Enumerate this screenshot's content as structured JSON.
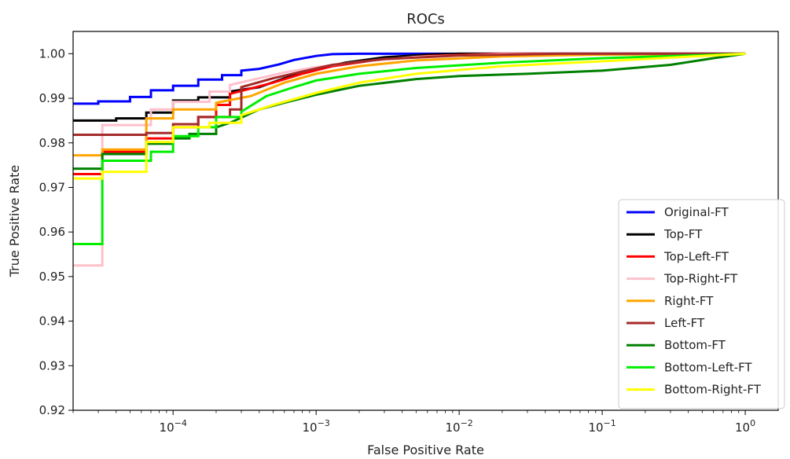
{
  "chart_data": {
    "type": "line",
    "title": "ROCs",
    "xlabel": "False Positive Rate",
    "ylabel": "True Positive Rate",
    "xscale": "log",
    "xlim": [
      2e-05,
      1.7
    ],
    "ylim": [
      0.92,
      1.005
    ],
    "xticks": [
      {
        "value": 0.0001,
        "base": "10",
        "exp": "−4"
      },
      {
        "value": 0.001,
        "base": "10",
        "exp": "−3"
      },
      {
        "value": 0.01,
        "base": "10",
        "exp": "−2"
      },
      {
        "value": 0.1,
        "base": "10",
        "exp": "−1"
      },
      {
        "value": 1,
        "base": "10",
        "exp": "0"
      }
    ],
    "yticks": [
      {
        "value": 0.92,
        "label": "0.92"
      },
      {
        "value": 0.93,
        "label": "0.93"
      },
      {
        "value": 0.94,
        "label": "0.94"
      },
      {
        "value": 0.95,
        "label": "0.95"
      },
      {
        "value": 0.96,
        "label": "0.96"
      },
      {
        "value": 0.97,
        "label": "0.97"
      },
      {
        "value": 0.98,
        "label": "0.98"
      },
      {
        "value": 0.99,
        "label": "0.99"
      },
      {
        "value": 1.0,
        "label": "1.00"
      }
    ],
    "grid": false,
    "legend_position": "lower-right",
    "series": [
      {
        "name": "Original-FT",
        "color": "#0000ff",
        "points": [
          [
            2e-05,
            0.9888
          ],
          [
            3e-05,
            0.9888
          ],
          [
            3e-05,
            0.9893
          ],
          [
            5e-05,
            0.9893
          ],
          [
            5e-05,
            0.9903
          ],
          [
            7e-05,
            0.9903
          ],
          [
            7e-05,
            0.9918
          ],
          [
            0.0001,
            0.9918
          ],
          [
            0.0001,
            0.9928
          ],
          [
            0.00015,
            0.9928
          ],
          [
            0.00015,
            0.9942
          ],
          [
            0.00022,
            0.9942
          ],
          [
            0.00022,
            0.9952
          ],
          [
            0.0003,
            0.9952
          ],
          [
            0.0003,
            0.9962
          ],
          [
            0.0004,
            0.9966
          ],
          [
            0.00055,
            0.9976
          ],
          [
            0.0007,
            0.9986
          ],
          [
            0.001,
            0.9995
          ],
          [
            0.0013,
            0.9999
          ],
          [
            0.002,
            1.0
          ],
          [
            1.0,
            1.0
          ]
        ]
      },
      {
        "name": "Top-FT",
        "color": "#000000",
        "points": [
          [
            2e-05,
            0.985
          ],
          [
            4e-05,
            0.985
          ],
          [
            4e-05,
            0.9855
          ],
          [
            6.5e-05,
            0.9855
          ],
          [
            6.5e-05,
            0.9868
          ],
          [
            0.0001,
            0.9868
          ],
          [
            0.0001,
            0.9895
          ],
          [
            0.00015,
            0.9895
          ],
          [
            0.00015,
            0.9902
          ],
          [
            0.00025,
            0.9902
          ],
          [
            0.00025,
            0.9915
          ],
          [
            0.0004,
            0.9925
          ],
          [
            0.0006,
            0.9945
          ],
          [
            0.001,
            0.9965
          ],
          [
            0.0016,
            0.998
          ],
          [
            0.003,
            0.9992
          ],
          [
            0.006,
            0.9998
          ],
          [
            0.01,
            1.0
          ],
          [
            1.0,
            1.0
          ]
        ]
      },
      {
        "name": "Top-Left-FT",
        "color": "#ff0000",
        "points": [
          [
            2e-05,
            0.973
          ],
          [
            3.2e-05,
            0.973
          ],
          [
            3.2e-05,
            0.978
          ],
          [
            6.5e-05,
            0.978
          ],
          [
            6.5e-05,
            0.981
          ],
          [
            0.0001,
            0.981
          ],
          [
            0.0001,
            0.9835
          ],
          [
            0.00015,
            0.9835
          ],
          [
            0.00015,
            0.9858
          ],
          [
            0.0002,
            0.9858
          ],
          [
            0.0002,
            0.9885
          ],
          [
            0.00025,
            0.9885
          ],
          [
            0.00025,
            0.991
          ],
          [
            0.00035,
            0.9922
          ],
          [
            0.0005,
            0.9935
          ],
          [
            0.0008,
            0.9955
          ],
          [
            0.0013,
            0.9972
          ],
          [
            0.0025,
            0.9985
          ],
          [
            0.006,
            0.9995
          ],
          [
            0.02,
            1.0
          ],
          [
            1.0,
            1.0
          ]
        ]
      },
      {
        "name": "Top-Right-FT",
        "color": "#ffc0cb",
        "points": [
          [
            2e-05,
            0.9525
          ],
          [
            3.2e-05,
            0.9525
          ],
          [
            3.2e-05,
            0.984
          ],
          [
            7e-05,
            0.984
          ],
          [
            7e-05,
            0.9875
          ],
          [
            0.0001,
            0.9875
          ],
          [
            0.0001,
            0.9892
          ],
          [
            0.00018,
            0.9892
          ],
          [
            0.00018,
            0.9915
          ],
          [
            0.00025,
            0.9915
          ],
          [
            0.00025,
            0.993
          ],
          [
            0.0004,
            0.9945
          ],
          [
            0.0006,
            0.9958
          ],
          [
            0.001,
            0.997
          ],
          [
            0.002,
            0.9982
          ],
          [
            0.005,
            0.9993
          ],
          [
            0.02,
            0.9999
          ],
          [
            1.0,
            1.0
          ]
        ]
      },
      {
        "name": "Right-FT",
        "color": "#ffa500",
        "points": [
          [
            2e-05,
            0.9772
          ],
          [
            3.2e-05,
            0.9772
          ],
          [
            3.2e-05,
            0.9785
          ],
          [
            6.5e-05,
            0.9785
          ],
          [
            6.5e-05,
            0.9855
          ],
          [
            0.0001,
            0.9855
          ],
          [
            0.0001,
            0.9875
          ],
          [
            0.0002,
            0.9875
          ],
          [
            0.0002,
            0.989
          ],
          [
            0.00035,
            0.9905
          ],
          [
            0.0006,
            0.9935
          ],
          [
            0.001,
            0.9955
          ],
          [
            0.002,
            0.9972
          ],
          [
            0.005,
            0.9985
          ],
          [
            0.02,
            0.9994
          ],
          [
            0.1,
            0.9998
          ],
          [
            1.0,
            1.0
          ]
        ]
      },
      {
        "name": "Left-FT",
        "color": "#a52a2a",
        "points": [
          [
            2e-05,
            0.9818
          ],
          [
            6.5e-05,
            0.9818
          ],
          [
            6.5e-05,
            0.9822
          ],
          [
            0.0001,
            0.9822
          ],
          [
            0.0001,
            0.9842
          ],
          [
            0.00015,
            0.9842
          ],
          [
            0.00015,
            0.9858
          ],
          [
            0.00025,
            0.9858
          ],
          [
            0.00025,
            0.9875
          ],
          [
            0.0003,
            0.9875
          ],
          [
            0.0003,
            0.9925
          ],
          [
            0.0005,
            0.9945
          ],
          [
            0.0008,
            0.996
          ],
          [
            0.0013,
            0.9975
          ],
          [
            0.003,
            0.9988
          ],
          [
            0.01,
            0.9996
          ],
          [
            0.05,
            1.0
          ],
          [
            1.0,
            1.0
          ]
        ]
      },
      {
        "name": "Bottom-FT",
        "color": "#008000",
        "points": [
          [
            2e-05,
            0.9742
          ],
          [
            3.2e-05,
            0.9742
          ],
          [
            3.2e-05,
            0.9775
          ],
          [
            6.5e-05,
            0.9775
          ],
          [
            6.5e-05,
            0.9798
          ],
          [
            0.0001,
            0.9798
          ],
          [
            0.0001,
            0.981
          ],
          [
            0.00013,
            0.981
          ],
          [
            0.00013,
            0.982
          ],
          [
            0.0002,
            0.982
          ],
          [
            0.0002,
            0.9835
          ],
          [
            0.00025,
            0.9845
          ],
          [
            0.0004,
            0.9875
          ],
          [
            0.0006,
            0.989
          ],
          [
            0.001,
            0.9908
          ],
          [
            0.002,
            0.9928
          ],
          [
            0.005,
            0.9943
          ],
          [
            0.01,
            0.995
          ],
          [
            0.03,
            0.9955
          ],
          [
            0.1,
            0.9962
          ],
          [
            0.3,
            0.9975
          ],
          [
            0.6,
            0.999
          ],
          [
            1.0,
            1.0
          ]
        ]
      },
      {
        "name": "Bottom-Left-FT",
        "color": "#00ee00",
        "points": [
          [
            2e-05,
            0.9573
          ],
          [
            3.2e-05,
            0.9573
          ],
          [
            3.2e-05,
            0.976
          ],
          [
            7e-05,
            0.976
          ],
          [
            7e-05,
            0.978
          ],
          [
            0.0001,
            0.978
          ],
          [
            0.0001,
            0.9815
          ],
          [
            0.00015,
            0.9815
          ],
          [
            0.00015,
            0.9835
          ],
          [
            0.0002,
            0.9835
          ],
          [
            0.0002,
            0.9858
          ],
          [
            0.0003,
            0.9858
          ],
          [
            0.0003,
            0.987
          ],
          [
            0.00045,
            0.9905
          ],
          [
            0.0007,
            0.9925
          ],
          [
            0.001,
            0.994
          ],
          [
            0.002,
            0.9955
          ],
          [
            0.005,
            0.9968
          ],
          [
            0.02,
            0.998
          ],
          [
            0.1,
            0.999
          ],
          [
            0.4,
            0.9996
          ],
          [
            1.0,
            1.0
          ]
        ]
      },
      {
        "name": "Bottom-Right-FT",
        "color": "#ffff00",
        "points": [
          [
            2e-05,
            0.972
          ],
          [
            3.2e-05,
            0.972
          ],
          [
            3.2e-05,
            0.9735
          ],
          [
            6.5e-05,
            0.9735
          ],
          [
            6.5e-05,
            0.9802
          ],
          [
            0.0001,
            0.9802
          ],
          [
            0.0001,
            0.9835
          ],
          [
            0.00018,
            0.9835
          ],
          [
            0.00018,
            0.9845
          ],
          [
            0.0003,
            0.9845
          ],
          [
            0.0003,
            0.9862
          ],
          [
            0.0005,
            0.9885
          ],
          [
            0.001,
            0.9912
          ],
          [
            0.002,
            0.9935
          ],
          [
            0.005,
            0.9955
          ],
          [
            0.02,
            0.9972
          ],
          [
            0.1,
            0.9983
          ],
          [
            0.5,
            0.9995
          ],
          [
            1.0,
            1.0
          ]
        ]
      }
    ]
  }
}
